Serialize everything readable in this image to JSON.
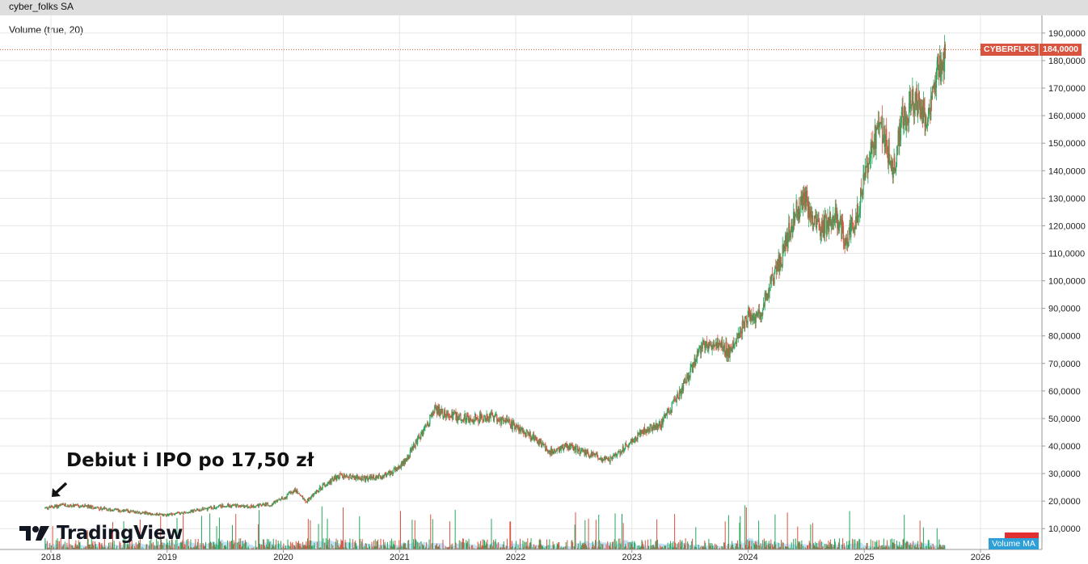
{
  "window": {
    "title": "cyber_folks SA"
  },
  "indicator_label": "Volume (true, 20)",
  "annotation": {
    "text": "Debiut i IPO po 17,50 zł"
  },
  "brand": {
    "name": "TradingView"
  },
  "price_badge": {
    "symbol": "CYBERFLKS",
    "value": "184,0000"
  },
  "volume_badge": {
    "label": "Volume MA"
  },
  "colors": {
    "up": "#26a65b",
    "down": "#d9543e",
    "volume_ma": "#8fc8ef",
    "grid": "#e6e6e6",
    "last_price": "#d9543e"
  },
  "chart_data": {
    "type": "candlestick",
    "ylim": [
      0,
      195000
    ],
    "y_ticks": [
      "10,0000",
      "20,0000",
      "30,0000",
      "40,0000",
      "50,0000",
      "60,0000",
      "70,0000",
      "80,0000",
      "90,0000",
      "100,0000",
      "110,0000",
      "120,0000",
      "130,0000",
      "140,0000",
      "150,0000",
      "160,0000",
      "170,0000",
      "180,0000",
      "190,0000"
    ],
    "y_tick_values": [
      10,
      20,
      30,
      40,
      50,
      60,
      70,
      80,
      90,
      100,
      110,
      120,
      130,
      140,
      150,
      160,
      170,
      180,
      190
    ],
    "x_ticks": [
      "2018",
      "2019",
      "2020",
      "2021",
      "2022",
      "2023",
      "2024",
      "2025",
      "2026"
    ],
    "last_price": 184,
    "price_path": [
      [
        2017.95,
        17.5
      ],
      [
        2018.1,
        18.5
      ],
      [
        2018.3,
        18.0
      ],
      [
        2018.5,
        17.0
      ],
      [
        2018.75,
        16.0
      ],
      [
        2018.95,
        15.0
      ],
      [
        2019.1,
        15.5
      ],
      [
        2019.3,
        17.0
      ],
      [
        2019.5,
        18.5
      ],
      [
        2019.7,
        18.0
      ],
      [
        2019.9,
        19.0
      ],
      [
        2020.0,
        21.0
      ],
      [
        2020.1,
        24.0
      ],
      [
        2020.2,
        20.0
      ],
      [
        2020.35,
        26.0
      ],
      [
        2020.5,
        29.5
      ],
      [
        2020.7,
        28.0
      ],
      [
        2020.85,
        29.0
      ],
      [
        2021.0,
        32.0
      ],
      [
        2021.1,
        38.0
      ],
      [
        2021.2,
        45.0
      ],
      [
        2021.3,
        53.0
      ],
      [
        2021.45,
        51.0
      ],
      [
        2021.6,
        50.0
      ],
      [
        2021.8,
        50.5
      ],
      [
        2022.0,
        47.0
      ],
      [
        2022.15,
        43.0
      ],
      [
        2022.3,
        38.0
      ],
      [
        2022.45,
        40.0
      ],
      [
        2022.6,
        37.5
      ],
      [
        2022.8,
        34.5
      ],
      [
        2022.95,
        40.0
      ],
      [
        2023.1,
        46.0
      ],
      [
        2023.25,
        48.0
      ],
      [
        2023.4,
        58.0
      ],
      [
        2023.5,
        66.0
      ],
      [
        2023.6,
        76.0
      ],
      [
        2023.75,
        77.0
      ],
      [
        2023.85,
        74.0
      ],
      [
        2024.0,
        88.0
      ],
      [
        2024.1,
        87.0
      ],
      [
        2024.2,
        100.0
      ],
      [
        2024.3,
        110.0
      ],
      [
        2024.4,
        124.0
      ],
      [
        2024.5,
        129.0
      ],
      [
        2024.6,
        118.0
      ],
      [
        2024.75,
        123.0
      ],
      [
        2024.85,
        115.0
      ],
      [
        2024.95,
        126.0
      ],
      [
        2025.05,
        148.0
      ],
      [
        2025.15,
        156.0
      ],
      [
        2025.25,
        140.0
      ],
      [
        2025.32,
        157.0
      ],
      [
        2025.42,
        166.0
      ],
      [
        2025.55,
        158.0
      ],
      [
        2025.6,
        174.0
      ],
      [
        2025.66,
        178.0
      ],
      [
        2025.7,
        184.0
      ]
    ]
  }
}
